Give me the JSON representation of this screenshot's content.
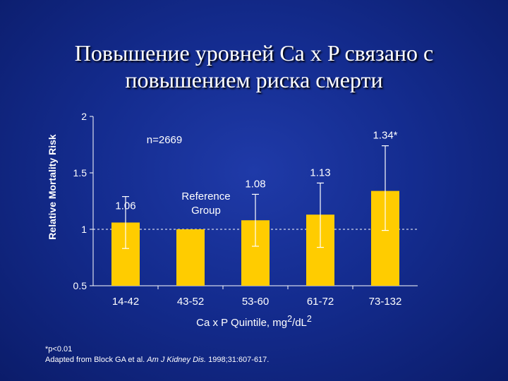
{
  "title": {
    "line1": "Повышение уровней Ca x P связано с",
    "line2": "повышением риска смерти"
  },
  "colors": {
    "background": "#142c8f",
    "bar": "#ffcc00",
    "axis": "#ffffff",
    "text": "#ffffff"
  },
  "chart_data": {
    "type": "bar",
    "ylabel": "Relative Mortality Risk",
    "xlabel": "Ca x P Quintile, mg²/dL²",
    "categories": [
      "14-42",
      "43-52",
      "53-60",
      "61-72",
      "73-132"
    ],
    "values": [
      1.06,
      1.0,
      1.08,
      1.13,
      1.34
    ],
    "error_low": [
      0.83,
      1.0,
      0.85,
      0.84,
      0.99
    ],
    "error_high": [
      1.29,
      1.0,
      1.31,
      1.41,
      1.74
    ],
    "data_labels": [
      "1.06",
      "",
      "1.08",
      "1.13",
      "1.34*"
    ],
    "reference_label": "Reference Group",
    "sample_note": "n=2669",
    "ylim": [
      0.5,
      2
    ],
    "yticks": [
      "0.5",
      "1",
      "1.5",
      "2"
    ],
    "reference_line": 1,
    "legend": "none"
  },
  "footnote": {
    "line1": "*p<0.01",
    "line2_prefix": "Adapted from Block GA et al. ",
    "line2_journal": "Am J Kidney Dis.",
    "line2_suffix": " 1998;31:607-617."
  }
}
